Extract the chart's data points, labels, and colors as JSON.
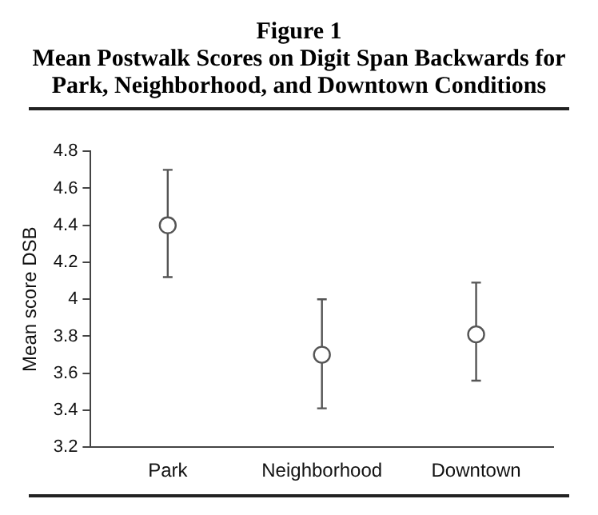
{
  "chart_data": {
    "type": "scatter",
    "title": "Figure 1",
    "subtitle": "Mean Postwalk Scores on Digit Span Backwards for Park, Neighborhood, and Downtown Conditions",
    "ylabel": "Mean score DSB",
    "categories": [
      "Park",
      "Neighborhood",
      "Downtown"
    ],
    "values": [
      4.4,
      3.7,
      3.81
    ],
    "errors": [
      [
        4.12,
        4.7
      ],
      [
        3.41,
        4.0
      ],
      [
        3.56,
        4.09
      ]
    ],
    "color": "#555555",
    "marker": "circle",
    "ylim": [
      3.2,
      4.8
    ],
    "yticks": [
      3.2,
      3.4,
      3.6,
      3.8,
      4,
      4.2,
      4.4,
      4.6,
      4.8
    ],
    "grid": false,
    "legend": false
  }
}
